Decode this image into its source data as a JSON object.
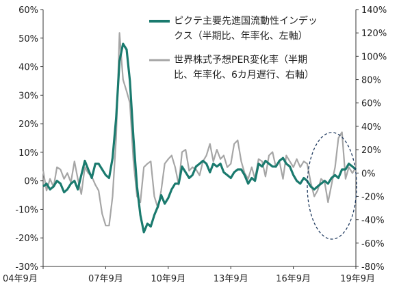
{
  "chart_data": {
    "type": "line",
    "x_ticks": [
      "04年9月",
      "07年9月",
      "10年9月",
      "13年9月",
      "16年9月",
      "19年9月"
    ],
    "x_start": 2004.667,
    "x_end": 2019.667,
    "y_left": {
      "ticks": [
        "60%",
        "50%",
        "40%",
        "30%",
        "20%",
        "10%",
        "0%",
        "-10%",
        "-20%",
        "-30%"
      ],
      "range": [
        -30,
        60
      ]
    },
    "y_right": {
      "ticks": [
        "140%",
        "120%",
        "100%",
        "80%",
        "60%",
        "40%",
        "20%",
        "0%",
        "-20%",
        "-40%",
        "-60%",
        "-80%"
      ],
      "range": [
        -80,
        140
      ]
    },
    "grid": false,
    "legend": {
      "series1": [
        "ピクテ主要先進国流動性インデッ",
        "クス（半期比、年率化、左軸）"
      ],
      "series2": [
        "世界株式予想PER変化率（半期",
        "比、年率化、6カ月遅行、右軸）"
      ]
    },
    "series": [
      {
        "name": "ピクテ主要先進国流動性インデックス（半期比、年率化、左軸）",
        "axis": "left",
        "color": "#1a7a6e",
        "points": [
          [
            2004.67,
            -2
          ],
          [
            2004.83,
            -1
          ],
          [
            2005.0,
            -3
          ],
          [
            2005.17,
            -2
          ],
          [
            2005.33,
            0
          ],
          [
            2005.5,
            -1
          ],
          [
            2005.67,
            -4
          ],
          [
            2005.83,
            -3
          ],
          [
            2006.0,
            -1
          ],
          [
            2006.17,
            0
          ],
          [
            2006.33,
            -3
          ],
          [
            2006.5,
            2
          ],
          [
            2006.67,
            7
          ],
          [
            2006.83,
            4
          ],
          [
            2007.0,
            1
          ],
          [
            2007.17,
            6
          ],
          [
            2007.33,
            6
          ],
          [
            2007.5,
            4
          ],
          [
            2007.67,
            2
          ],
          [
            2007.83,
            1
          ],
          [
            2008.0,
            8
          ],
          [
            2008.17,
            22
          ],
          [
            2008.33,
            42
          ],
          [
            2008.5,
            48
          ],
          [
            2008.67,
            46
          ],
          [
            2008.83,
            35
          ],
          [
            2009.0,
            15
          ],
          [
            2009.17,
            -2
          ],
          [
            2009.33,
            -12
          ],
          [
            2009.5,
            -18
          ],
          [
            2009.67,
            -15
          ],
          [
            2009.83,
            -16
          ],
          [
            2010.0,
            -12
          ],
          [
            2010.17,
            -9
          ],
          [
            2010.33,
            -5
          ],
          [
            2010.5,
            -8
          ],
          [
            2010.67,
            -6
          ],
          [
            2010.83,
            -3
          ],
          [
            2011.0,
            -1
          ],
          [
            2011.17,
            -1
          ],
          [
            2011.33,
            5
          ],
          [
            2011.5,
            3
          ],
          [
            2011.67,
            1
          ],
          [
            2011.83,
            2
          ],
          [
            2012.0,
            5
          ],
          [
            2012.17,
            6
          ],
          [
            2012.33,
            7
          ],
          [
            2012.5,
            6
          ],
          [
            2012.67,
            3
          ],
          [
            2012.83,
            6
          ],
          [
            2013.0,
            5
          ],
          [
            2013.17,
            6
          ],
          [
            2013.33,
            3
          ],
          [
            2013.5,
            2
          ],
          [
            2013.67,
            1
          ],
          [
            2013.83,
            3
          ],
          [
            2014.0,
            4
          ],
          [
            2014.17,
            4
          ],
          [
            2014.33,
            2
          ],
          [
            2014.5,
            -1
          ],
          [
            2014.67,
            1
          ],
          [
            2014.83,
            0
          ],
          [
            2015.0,
            6
          ],
          [
            2015.17,
            5
          ],
          [
            2015.33,
            7
          ],
          [
            2015.5,
            6
          ],
          [
            2015.67,
            5
          ],
          [
            2015.83,
            5
          ],
          [
            2016.0,
            7
          ],
          [
            2016.17,
            8
          ],
          [
            2016.33,
            6
          ],
          [
            2016.5,
            5
          ],
          [
            2016.67,
            2
          ],
          [
            2016.83,
            0
          ],
          [
            2017.0,
            -1
          ],
          [
            2017.17,
            1
          ],
          [
            2017.33,
            0
          ],
          [
            2017.5,
            -2
          ],
          [
            2017.67,
            -3
          ],
          [
            2017.83,
            -2
          ],
          [
            2018.0,
            -1
          ],
          [
            2018.17,
            0
          ],
          [
            2018.33,
            -1
          ],
          [
            2018.5,
            1
          ],
          [
            2018.67,
            2
          ],
          [
            2018.83,
            1
          ],
          [
            2019.0,
            4
          ],
          [
            2019.17,
            4
          ],
          [
            2019.33,
            6
          ],
          [
            2019.5,
            5
          ],
          [
            2019.67,
            4
          ]
        ]
      },
      {
        "name": "世界株式予想PER変化率（半期比、年率化、6カ月遅行、右軸）",
        "axis": "right",
        "color": "#a6a6a6",
        "points": [
          [
            2004.67,
            2
          ],
          [
            2004.83,
            -15
          ],
          [
            2005.0,
            -5
          ],
          [
            2005.17,
            -12
          ],
          [
            2005.33,
            5
          ],
          [
            2005.5,
            3
          ],
          [
            2005.67,
            -5
          ],
          [
            2005.83,
            0
          ],
          [
            2006.0,
            -8
          ],
          [
            2006.17,
            10
          ],
          [
            2006.33,
            -5
          ],
          [
            2006.5,
            -18
          ],
          [
            2006.67,
            5
          ],
          [
            2006.83,
            0
          ],
          [
            2007.0,
            -3
          ],
          [
            2007.17,
            -10
          ],
          [
            2007.33,
            -15
          ],
          [
            2007.5,
            -35
          ],
          [
            2007.67,
            -45
          ],
          [
            2007.83,
            -45
          ],
          [
            2008.0,
            -20
          ],
          [
            2008.17,
            30
          ],
          [
            2008.33,
            120
          ],
          [
            2008.5,
            80
          ],
          [
            2008.67,
            70
          ],
          [
            2008.83,
            60
          ],
          [
            2009.0,
            10
          ],
          [
            2009.17,
            -20
          ],
          [
            2009.33,
            -25
          ],
          [
            2009.5,
            5
          ],
          [
            2009.67,
            8
          ],
          [
            2009.83,
            10
          ],
          [
            2010.0,
            -20
          ],
          [
            2010.17,
            -30
          ],
          [
            2010.33,
            -15
          ],
          [
            2010.5,
            8
          ],
          [
            2010.67,
            12
          ],
          [
            2010.83,
            15
          ],
          [
            2011.0,
            5
          ],
          [
            2011.17,
            -10
          ],
          [
            2011.33,
            18
          ],
          [
            2011.5,
            20
          ],
          [
            2011.67,
            2
          ],
          [
            2011.83,
            5
          ],
          [
            2012.0,
            3
          ],
          [
            2012.17,
            -2
          ],
          [
            2012.33,
            10
          ],
          [
            2012.5,
            15
          ],
          [
            2012.67,
            25
          ],
          [
            2012.83,
            10
          ],
          [
            2013.0,
            20
          ],
          [
            2013.17,
            12
          ],
          [
            2013.33,
            15
          ],
          [
            2013.5,
            5
          ],
          [
            2013.67,
            8
          ],
          [
            2013.83,
            25
          ],
          [
            2014.0,
            28
          ],
          [
            2014.17,
            10
          ],
          [
            2014.33,
            0
          ],
          [
            2014.5,
            -5
          ],
          [
            2014.67,
            5
          ],
          [
            2014.83,
            -5
          ],
          [
            2015.0,
            12
          ],
          [
            2015.17,
            10
          ],
          [
            2015.33,
            -3
          ],
          [
            2015.5,
            15
          ],
          [
            2015.67,
            18
          ],
          [
            2015.83,
            5
          ],
          [
            2016.0,
            10
          ],
          [
            2016.17,
            -5
          ],
          [
            2016.33,
            15
          ],
          [
            2016.5,
            10
          ],
          [
            2016.67,
            5
          ],
          [
            2016.83,
            12
          ],
          [
            2017.0,
            5
          ],
          [
            2017.17,
            10
          ],
          [
            2017.33,
            8
          ],
          [
            2017.5,
            -8
          ],
          [
            2017.67,
            -20
          ],
          [
            2017.83,
            -15
          ],
          [
            2018.0,
            -5
          ],
          [
            2018.17,
            -8
          ],
          [
            2018.33,
            -25
          ],
          [
            2018.5,
            -10
          ],
          [
            2018.67,
            5
          ],
          [
            2018.83,
            30
          ],
          [
            2019.0,
            35
          ],
          [
            2019.17,
            -5
          ],
          [
            2019.33,
            5
          ],
          [
            2019.5,
            0
          ],
          [
            2019.67,
            5
          ]
        ]
      }
    ]
  }
}
